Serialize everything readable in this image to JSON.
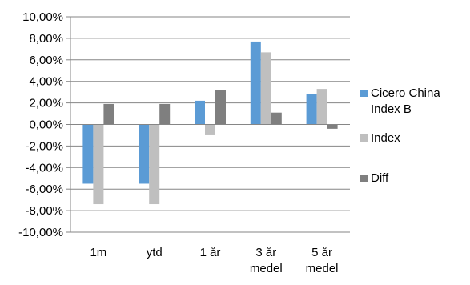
{
  "colors": {
    "background": "#ffffff",
    "grid": "#868686",
    "axis": "#868686",
    "text": "#000000"
  },
  "chart_data": {
    "type": "bar",
    "title": "",
    "xlabel": "",
    "ylabel": "",
    "categories": [
      [
        "1m"
      ],
      [
        "ytd"
      ],
      [
        "1 år"
      ],
      [
        "3 år",
        "medel"
      ],
      [
        "5 år",
        "medel"
      ]
    ],
    "yticks": [
      "10,00%",
      "8,00%",
      "6,00%",
      "4,00%",
      "2,00%",
      "0,00%",
      "-2,00%",
      "-4,00%",
      "-6,00%",
      "-8,00%",
      "-10,00%"
    ],
    "ylim": [
      -10,
      10
    ],
    "grid": true,
    "legend_position": "right",
    "series": [
      {
        "name": [
          "Cicero China",
          "Index B"
        ],
        "color": "#5b9bd5",
        "values": [
          -5.5,
          -5.5,
          2.2,
          7.7,
          2.8
        ]
      },
      {
        "name": [
          "Index"
        ],
        "color": "#bfbfbf",
        "values": [
          -7.4,
          -7.4,
          -1.0,
          6.7,
          3.3
        ]
      },
      {
        "name": [
          "Diff"
        ],
        "color": "#7f7f7f",
        "values": [
          1.9,
          1.9,
          3.2,
          1.1,
          -0.4
        ]
      }
    ]
  }
}
